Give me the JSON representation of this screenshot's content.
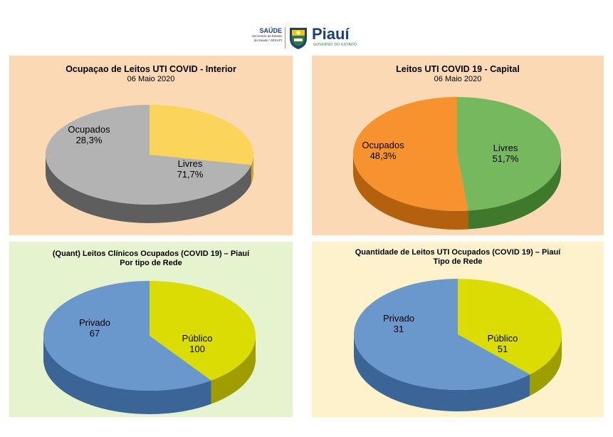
{
  "header": {
    "saude_title": "SAÚDE",
    "saude_sub_1": "Secretaria de Estado",
    "saude_sub_2": "da Saúde / SESAPI",
    "state_name": "Piauí",
    "state_sub": "GOVERNO DO ESTADO"
  },
  "chart_data": [
    {
      "type": "pie",
      "title": "Ocupaçao de Leitos UTI COVID - Interior",
      "subtitle": "06 Maio 2020",
      "slices": [
        {
          "name": "Ocupados",
          "value": 28.3,
          "label": "28,3%",
          "color": "#fbd55a",
          "side": "#c9a226"
        },
        {
          "name": "Livres",
          "value": 71.7,
          "label": "71,7%",
          "color": "#b3b3b3",
          "side": "#5e5e5e"
        }
      ]
    },
    {
      "type": "pie",
      "title": "Leitos UTI COVID 19 - Capital",
      "subtitle": "06 Maio 2020",
      "slices": [
        {
          "name": "Ocupados",
          "value": 48.3,
          "label": "48,3%",
          "color": "#76b85d",
          "side": "#3f7a2c"
        },
        {
          "name": "Livres",
          "value": 51.7,
          "label": "51,7%",
          "color": "#f7932f",
          "side": "#b3600f"
        }
      ]
    },
    {
      "type": "pie",
      "title": "(Quant) Leitos Clínicos Ocupados (COVID 19) – Piauí",
      "title2": "Por tipo de Rede",
      "subtitle": "",
      "slices": [
        {
          "name": "Privado",
          "value": 67,
          "label": "67",
          "color": "#dcdc05",
          "side": "#9e9e00"
        },
        {
          "name": "Público",
          "value": 100,
          "label": "100",
          "color": "#6a97cc",
          "side": "#3c6597"
        }
      ]
    },
    {
      "type": "pie",
      "title": "Quantidade de Leitos UTI Ocupados (COVID 19) – Piauí",
      "title2": "Tipo de Rede",
      "subtitle": "",
      "slices": [
        {
          "name": "Privado",
          "value": 31,
          "label": "31",
          "color": "#dcdc05",
          "side": "#9e9e00"
        },
        {
          "name": "Público",
          "value": 51,
          "label": "51",
          "color": "#6a97cc",
          "side": "#3c6597"
        }
      ]
    }
  ]
}
